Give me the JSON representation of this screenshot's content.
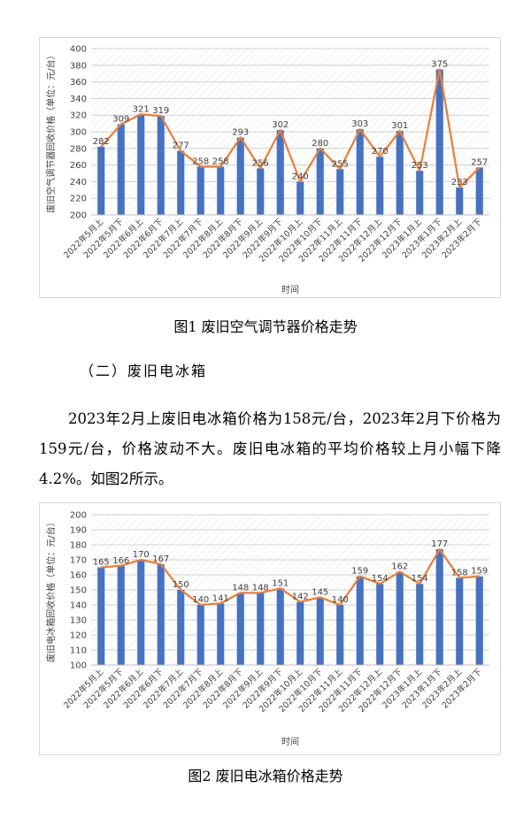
{
  "section_heading": "（二）废旧电冰箱",
  "paragraph": "2023年2月上废旧电冰箱价格为158元/台，2023年2月下价格为159元/台，价格波动不大。废旧电冰箱的平均价格较上月小幅下降4.2%。如图2所示。",
  "chart_data": [
    {
      "type": "bar",
      "title": "",
      "caption": "图1  废旧空气调节器价格走势",
      "xlabel": "时间",
      "ylabel": "废旧空气调节器回收价格（单位：元/台）",
      "ylim": [
        200,
        400
      ],
      "ytick_step": 20,
      "grid": true,
      "bar_color": "#4472c4",
      "line_color": "#ed7d31",
      "overlay_line": true,
      "categories": [
        "2022年5月上",
        "2022年5月下",
        "2022年6月上",
        "2022年6月下",
        "2022年7月上",
        "2022年7月下",
        "2022年8月上",
        "2022年8月下",
        "2022年9月上",
        "2022年9月下",
        "2022年10月上",
        "2022年10月下",
        "2022年11月上",
        "2022年11月下",
        "2022年12月上",
        "2022年12月下",
        "2023年1月上",
        "2023年1月下",
        "2023年2月上",
        "2023年2月下"
      ],
      "values": [
        282,
        309,
        321,
        319,
        277,
        258,
        258,
        293,
        256,
        302,
        240,
        280,
        255,
        303,
        270,
        301,
        253,
        375,
        233,
        257
      ]
    },
    {
      "type": "bar",
      "title": "",
      "caption": "图2  废旧电冰箱价格走势",
      "xlabel": "时间",
      "ylabel": "废旧电冰箱回收价格（单位：元/台）",
      "ylim": [
        100,
        200
      ],
      "ytick_step": 10,
      "grid": true,
      "bar_color": "#4472c4",
      "line_color": "#ed7d31",
      "overlay_line": true,
      "categories": [
        "2022年5月上",
        "2022年5月下",
        "2022年6月上",
        "2022年6月下",
        "2022年7月上",
        "2022年7月下",
        "2022年8月上",
        "2022年8月下",
        "2022年9月上",
        "2022年9月下",
        "2022年10月上",
        "2022年10月下",
        "2022年11月上",
        "2022年11月下",
        "2022年12月上",
        "2022年12月下",
        "2023年1月上",
        "2023年1月下",
        "2023年2月上",
        "2023年2月下"
      ],
      "values": [
        165,
        166,
        170,
        167,
        150,
        140,
        141,
        148,
        148,
        151,
        142,
        145,
        140,
        159,
        154,
        162,
        154,
        177,
        158,
        159
      ]
    }
  ]
}
